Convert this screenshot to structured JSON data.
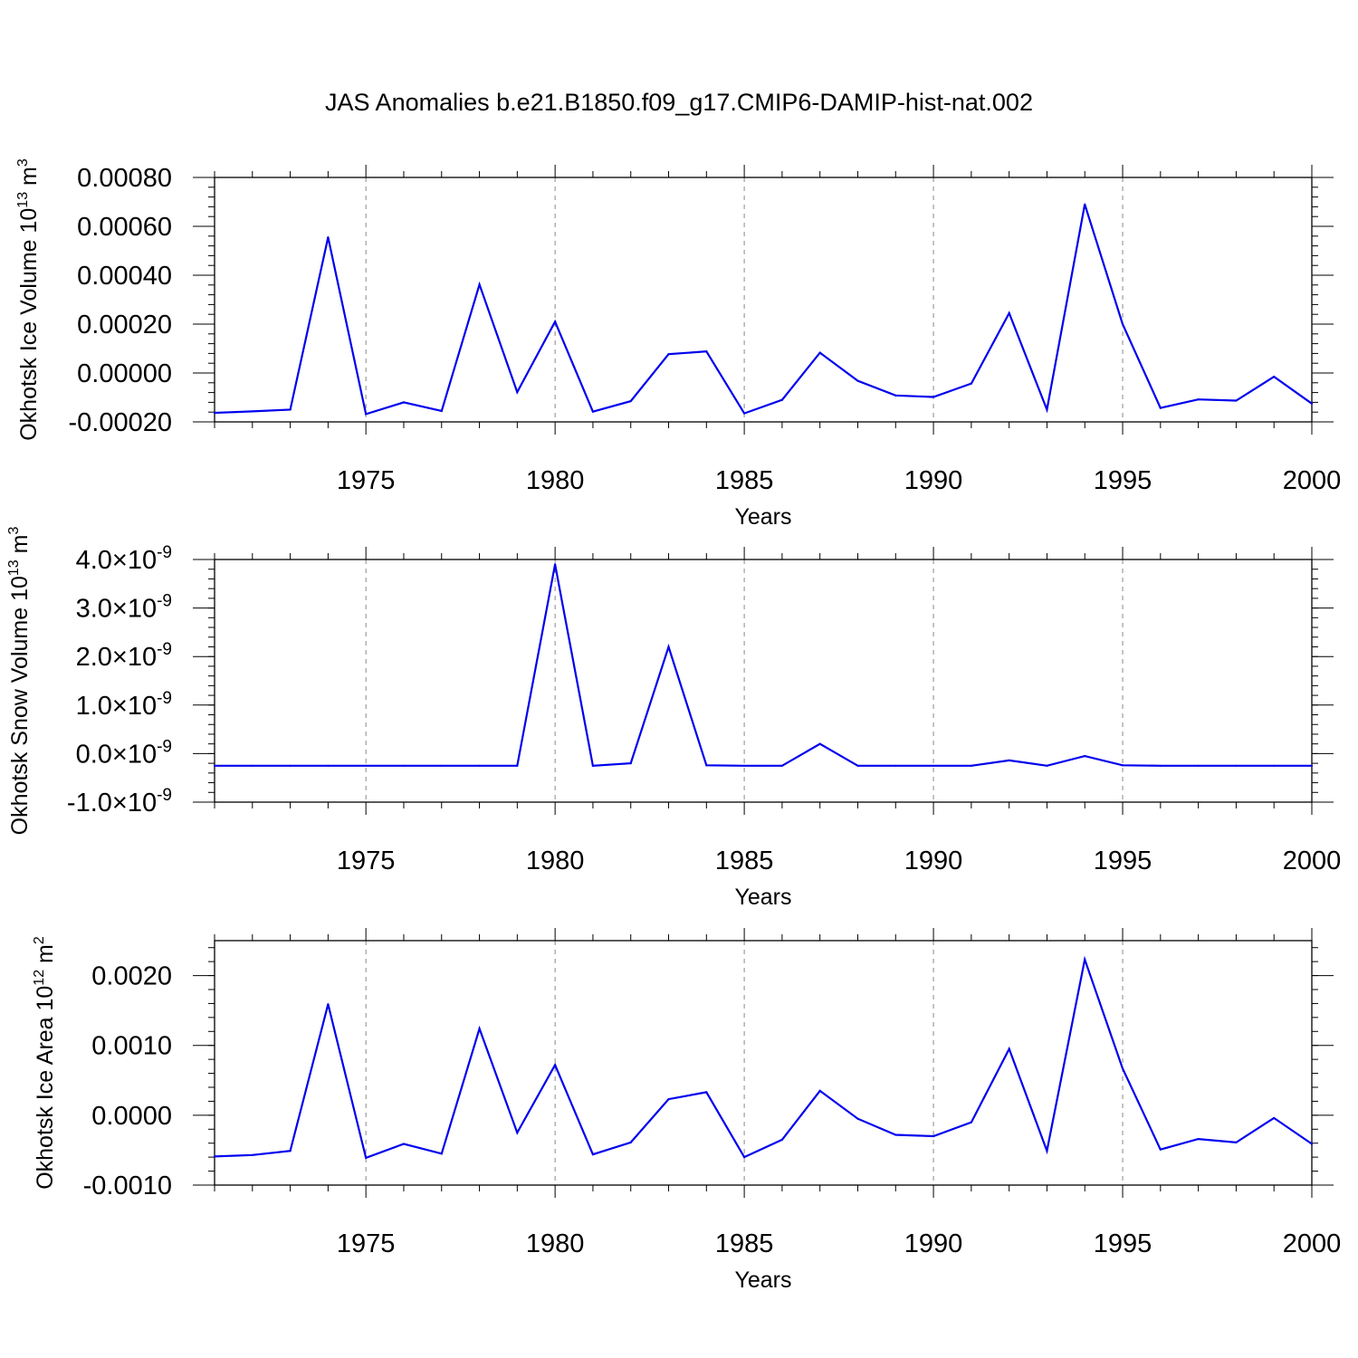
{
  "title": "JAS Anomalies b.e21.B1850.f09_g17.CMIP6-DAMIP-hist-nat.002",
  "colors": {
    "line": "#0000ee",
    "axes": "#000000",
    "grid": "#888888",
    "background": "#ffffff"
  },
  "chart_data": [
    {
      "type": "line",
      "title": "JAS Anomalies b.e21.B1850.f09_g17.CMIP6-DAMIP-hist-nat.002",
      "xlabel": "Years",
      "ylabel": {
        "main": "Okhotsk Ice Volume 10",
        "sup": "13",
        "unit": " m",
        "unit_sup": "3"
      },
      "xlim": [
        1971,
        2000
      ],
      "ylim": [
        -0.0002,
        0.0008
      ],
      "xticks": [
        1975,
        1980,
        1985,
        1990,
        1995,
        2000
      ],
      "xtick_labels": [
        "1975",
        "1980",
        "1985",
        "1990",
        "1995",
        "2000"
      ],
      "yticks": [
        -0.0002,
        0.0,
        0.0002,
        0.0004,
        0.0006,
        0.0008
      ],
      "ytick_labels": [
        "-0.00020",
        "0.00000",
        "0.00020",
        "0.00040",
        "0.00060",
        "0.00080"
      ],
      "x": [
        1971,
        1972,
        1973,
        1974,
        1975,
        1976,
        1977,
        1978,
        1979,
        1980,
        1981,
        1982,
        1983,
        1984,
        1985,
        1986,
        1987,
        1988,
        1989,
        1990,
        1991,
        1992,
        1993,
        1994,
        1995,
        1996,
        1997,
        1998,
        1999,
        2000
      ],
      "y": [
        -0.000163,
        -0.000157,
        -0.00015,
        0.000555,
        -0.000168,
        -0.00012,
        -0.000155,
        0.000362,
        -7.8e-05,
        0.00021,
        -0.000158,
        -0.000115,
        7.7e-05,
        8.8e-05,
        -0.000165,
        -0.00011,
        8.3e-05,
        -3.2e-05,
        -9.2e-05,
        -9.8e-05,
        -4.3e-05,
        0.000245,
        -0.00015,
        0.00069,
        0.0002,
        -0.000143,
        -0.000108,
        -0.000113,
        -1.5e-05,
        -0.000125
      ]
    },
    {
      "type": "line",
      "xlabel": "Years",
      "ylabel": {
        "main": "Okhotsk Snow Volume 10",
        "sup": "13",
        "unit": " m",
        "unit_sup": "3"
      },
      "xlim": [
        1971,
        2000
      ],
      "ylim": [
        -1e-09,
        4e-09
      ],
      "xticks": [
        1975,
        1980,
        1985,
        1990,
        1995,
        2000
      ],
      "xtick_labels": [
        "1975",
        "1980",
        "1985",
        "1990",
        "1995",
        "2000"
      ],
      "yticks": [
        -1e-09,
        0,
        1e-09,
        2e-09,
        3e-09,
        4e-09
      ],
      "ytick_labels": [
        {
          "mant": "-1.0",
          "times": "×10",
          "exp": "-9"
        },
        {
          "mant": "0.0",
          "times": "×10",
          "exp": "-9"
        },
        {
          "mant": "1.0",
          "times": "×10",
          "exp": "-9"
        },
        {
          "mant": "2.0",
          "times": "×10",
          "exp": "-9"
        },
        {
          "mant": "3.0",
          "times": "×10",
          "exp": "-9"
        },
        {
          "mant": "4.0",
          "times": "×10",
          "exp": "-9"
        }
      ],
      "x": [
        1971,
        1972,
        1973,
        1974,
        1975,
        1976,
        1977,
        1978,
        1979,
        1980,
        1981,
        1982,
        1983,
        1984,
        1985,
        1986,
        1987,
        1988,
        1989,
        1990,
        1991,
        1992,
        1993,
        1994,
        1995,
        1996,
        1997,
        1998,
        1999,
        2000
      ],
      "y": [
        -2.5e-10,
        -2.5e-10,
        -2.5e-10,
        -2.5e-10,
        -2.5e-10,
        -2.5e-10,
        -2.5e-10,
        -2.5e-10,
        -2.5e-10,
        3.9e-09,
        -2.5e-10,
        -2e-10,
        2.2e-09,
        -2.4e-10,
        -2.5e-10,
        -2.5e-10,
        2e-10,
        -2.5e-10,
        -2.5e-10,
        -2.5e-10,
        -2.5e-10,
        -1.4e-10,
        -2.5e-10,
        -5e-11,
        -2.4e-10,
        -2.5e-10,
        -2.5e-10,
        -2.5e-10,
        -2.5e-10,
        -2.5e-10
      ]
    },
    {
      "type": "line",
      "xlabel": "Years",
      "ylabel": {
        "main": "Okhotsk Ice Area 10",
        "sup": "12",
        "unit": " m",
        "unit_sup": "2"
      },
      "xlim": [
        1971,
        2000
      ],
      "ylim": [
        -0.001,
        0.0025
      ],
      "xticks": [
        1975,
        1980,
        1985,
        1990,
        1995,
        2000
      ],
      "xtick_labels": [
        "1975",
        "1980",
        "1985",
        "1990",
        "1995",
        "2000"
      ],
      "yticks": [
        -0.001,
        0.0,
        0.001,
        0.002
      ],
      "ytick_labels": [
        "-0.0010",
        "0.0000",
        "0.0010",
        "0.0020"
      ],
      "x": [
        1971,
        1972,
        1973,
        1974,
        1975,
        1976,
        1977,
        1978,
        1979,
        1980,
        1981,
        1982,
        1983,
        1984,
        1985,
        1986,
        1987,
        1988,
        1989,
        1990,
        1991,
        1992,
        1993,
        1994,
        1995,
        1996,
        1997,
        1998,
        1999,
        2000
      ],
      "y": [
        -0.00059,
        -0.00057,
        -0.00051,
        0.00159,
        -0.00061,
        -0.00041,
        -0.00055,
        0.00124,
        -0.00025,
        0.00072,
        -0.00056,
        -0.00039,
        0.00023,
        0.00033,
        -0.0006,
        -0.00035,
        0.00035,
        -5e-05,
        -0.00028,
        -0.0003,
        -0.0001,
        0.00095,
        -0.00051,
        0.00223,
        0.00067,
        -0.00049,
        -0.00034,
        -0.00039,
        -4e-05,
        -0.00041
      ]
    }
  ]
}
